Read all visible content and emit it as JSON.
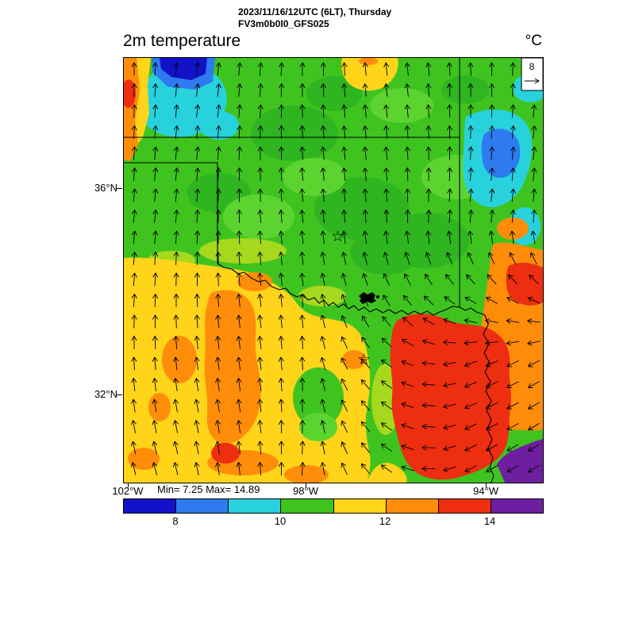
{
  "header": {
    "line1": "2023/11/16/12UTC (6LT), Thursday",
    "line2": "FV3m0b0I0_GFS025"
  },
  "map": {
    "title": "2m temperature",
    "units_label": "°C",
    "ref_arrow_label": "8",
    "lat_labels": [
      "36°N",
      "32°N"
    ],
    "lon_labels": [
      "102°W",
      "98°W",
      "94°W"
    ],
    "minmax_label": "Min= 7.25 Max= 14.89"
  },
  "colorbar": {
    "colors": [
      "#1212c8",
      "#2e7bf0",
      "#28d2dc",
      "#3fc41f",
      "#ffd419",
      "#ff8d0a",
      "#ee2e10",
      "#6e1fa0"
    ],
    "ticks": [
      "8",
      "10",
      "12",
      "14"
    ]
  },
  "chart_data": {
    "type": "heatmap",
    "title": "2m temperature",
    "units": "°C",
    "valid_time": "2023/11/16/12UTC (6LT), Thursday",
    "model": "FV3m0b0I0_GFS025",
    "min": 7.25,
    "max": 14.89,
    "colorbar_ticks": [
      8,
      10,
      12,
      14
    ],
    "level_range": [
      7,
      15
    ],
    "level_step": 1,
    "palette": [
      "#1212c8",
      "#2e7bf0",
      "#28d2dc",
      "#3fc41f",
      "#ffd419",
      "#ff8d0a",
      "#ee2e10",
      "#6e1fa0"
    ],
    "lat_ticks": [
      "36°N",
      "32°N"
    ],
    "lon_ticks": [
      "102°W",
      "98°W",
      "94°W"
    ],
    "wind_reference_value": 8,
    "overlay": "wind vector arrows; southerly flow over most of the domain, turning westerly/southwesterly in the southeast",
    "regions": [
      {
        "area": "Oklahoma and north Texas",
        "temp_c": "10-11"
      },
      {
        "area": "west and central Texas",
        "temp_c": "11-12"
      },
      {
        "area": "central/west Texas patches",
        "temp_c": "12-13"
      },
      {
        "area": "east Texas and southeast",
        "temp_c": "13-14"
      },
      {
        "area": "far southeast corner",
        "temp_c": "14-15"
      },
      {
        "area": "northwest patches",
        "temp_c": "8-10"
      },
      {
        "area": "far northwest corner",
        "temp_c": "7-8"
      }
    ]
  }
}
